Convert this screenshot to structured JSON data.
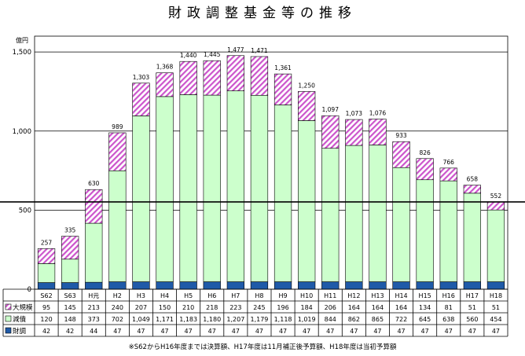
{
  "chart_data": {
    "type": "bar",
    "stacked": true,
    "title": "財政調整基金等の推移",
    "unit_label": "億円",
    "ylim": [
      0,
      1600
    ],
    "yticks": [
      0,
      500,
      1000,
      1500
    ],
    "ytick_labels": [
      "0",
      "500",
      "1,000",
      "1,500"
    ],
    "categories": [
      "S62",
      "S63",
      "H元",
      "H2",
      "H3",
      "H4",
      "H5",
      "H6",
      "H7",
      "H8",
      "H9",
      "H10",
      "H11",
      "H12",
      "H13",
      "H14",
      "H15",
      "H16",
      "H17",
      "H18"
    ],
    "totals": [
      257,
      335,
      630,
      989,
      1303,
      1368,
      1440,
      1445,
      1477,
      1471,
      1361,
      1250,
      1097,
      1073,
      1076,
      933,
      826,
      766,
      658,
      552
    ],
    "reference_line": 552,
    "series": [
      {
        "name": "財調",
        "color": "#1f5aa8",
        "values": [
          42,
          42,
          44,
          47,
          47,
          47,
          47,
          47,
          47,
          47,
          47,
          47,
          47,
          47,
          47,
          47,
          47,
          47,
          47,
          47
        ],
        "table_labels": [
          "42",
          "42",
          "44",
          "47",
          "47",
          "47",
          "47",
          "47",
          "47",
          "47",
          "47",
          "47",
          "47",
          "47",
          "47",
          "47",
          "47",
          "47",
          "47",
          "47"
        ]
      },
      {
        "name": "減債",
        "color": "#ccffcc",
        "values": [
          120,
          148,
          373,
          702,
          1049,
          1171,
          1183,
          1180,
          1207,
          1179,
          1118,
          1019,
          844,
          862,
          865,
          722,
          645,
          638,
          560,
          454
        ],
        "table_labels": [
          "120",
          "148",
          "373",
          "702",
          "1,049",
          "1,171",
          "1,183",
          "1,180",
          "1,207",
          "1,179",
          "1,118",
          "1,019",
          "844",
          "862",
          "865",
          "722",
          "645",
          "638",
          "560",
          "454"
        ]
      },
      {
        "name": "大規模",
        "color": "#cc66cc",
        "values": [
          95,
          145,
          213,
          240,
          207,
          150,
          210,
          218,
          223,
          245,
          196,
          184,
          206,
          164,
          164,
          164,
          134,
          81,
          51,
          51
        ],
        "table_labels": [
          "95",
          "145",
          "213",
          "240",
          "207",
          "150",
          "210",
          "218",
          "223",
          "245",
          "196",
          "184",
          "206",
          "164",
          "164",
          "164",
          "134",
          "81",
          "51",
          "51"
        ]
      }
    ],
    "grid": true,
    "footnote": "※S62からH16年度までは決算額、H17年度は11月補正後予算額、H18年度は当初予算額"
  }
}
